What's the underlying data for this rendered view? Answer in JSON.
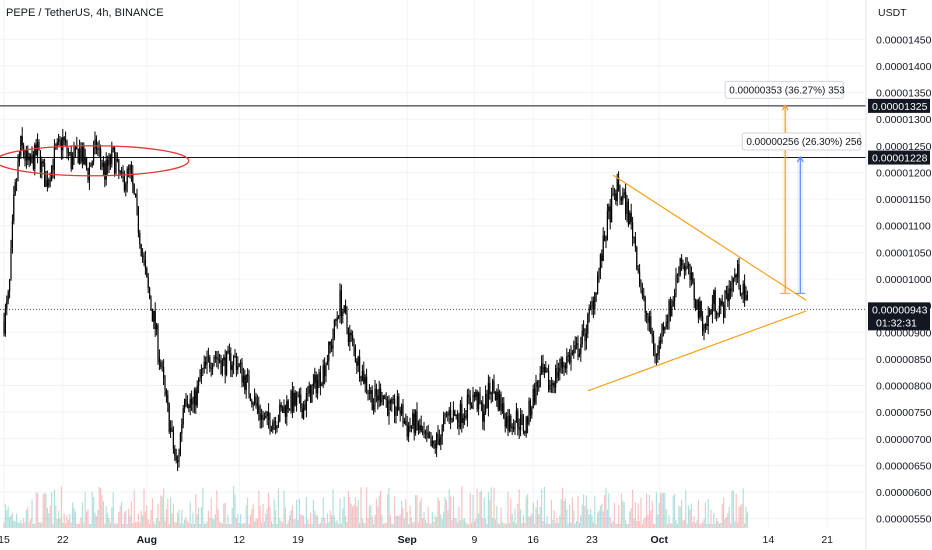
{
  "header": {
    "title": "PEPE / TetherUS, 4h, BINANCE",
    "currency": "USDT"
  },
  "colors": {
    "up": "#26a69a",
    "down": "#ef5350",
    "candle": "#000000",
    "triangle": "#f7a21b",
    "ellipse": "#e53935",
    "measure_blue": "#5b8ff9",
    "measure_orange": "#f7a21b",
    "level_line": "#131722"
  },
  "chart_data": {
    "type": "candlestick",
    "title": "PEPE / TetherUS, 4h, BINANCE",
    "ylabel": "USDT",
    "ylim": [
      5.4e-06,
      1.49e-05
    ],
    "y_ticks": [
      "0.00001450",
      "0.00001400",
      "0.00001350",
      "0.00001300",
      "0.00001250",
      "0.00001200",
      "0.00001150",
      "0.00001100",
      "0.00001050",
      "0.00001000",
      "0.00000950",
      "0.00000900",
      "0.00000850",
      "0.00000800",
      "0.00000750",
      "0.00000700",
      "0.00000650",
      "0.00000600",
      "0.00000550"
    ],
    "x_ticks": [
      {
        "label": "15",
        "day": 0,
        "bold": false
      },
      {
        "label": "22",
        "day": 7,
        "bold": false
      },
      {
        "label": "Aug",
        "day": 17,
        "bold": true
      },
      {
        "label": "12",
        "day": 28,
        "bold": false
      },
      {
        "label": "19",
        "day": 35,
        "bold": false
      },
      {
        "label": "Sep",
        "day": 48,
        "bold": true
      },
      {
        "label": "9",
        "day": 56,
        "bold": false
      },
      {
        "label": "16",
        "day": 63,
        "bold": false
      },
      {
        "label": "23",
        "day": 70,
        "bold": false
      },
      {
        "label": "Oct",
        "day": 78,
        "bold": true
      },
      {
        "label": "14",
        "day": 91,
        "bold": false
      },
      {
        "label": "21",
        "day": 98,
        "bold": false
      }
    ],
    "price_path": [
      [
        0,
        9.2e-06
      ],
      [
        0.6,
        9.7e-06
      ],
      [
        1.2,
        1.15e-05
      ],
      [
        2,
        1.25e-05
      ],
      [
        3,
        1.21e-05
      ],
      [
        4,
        1.24e-05
      ],
      [
        5,
        1.18e-05
      ],
      [
        6,
        1.23e-05
      ],
      [
        7,
        1.26e-05
      ],
      [
        8,
        1.22e-05
      ],
      [
        9,
        1.24e-05
      ],
      [
        10,
        1.2e-05
      ],
      [
        11,
        1.25e-05
      ],
      [
        12,
        1.2e-05
      ],
      [
        13,
        1.23e-05
      ],
      [
        14,
        1.18e-05
      ],
      [
        15,
        1.2e-05
      ],
      [
        16,
        1.1e-05
      ],
      [
        17,
        9.9e-06
      ],
      [
        18,
        9.1e-06
      ],
      [
        19,
        8e-06
      ],
      [
        20,
        7e-06
      ],
      [
        20.6,
        6.4e-06
      ],
      [
        21.5,
        7.9e-06
      ],
      [
        22.5,
        7.6e-06
      ],
      [
        23.5,
        8.2e-06
      ],
      [
        25,
        8.6e-06
      ],
      [
        26,
        8.4e-06
      ],
      [
        27.5,
        8.5e-06
      ],
      [
        29,
        8e-06
      ],
      [
        31,
        7.3e-06
      ],
      [
        32.5,
        7.4e-06
      ],
      [
        34,
        7.7e-06
      ],
      [
        35.5,
        7.6e-06
      ],
      [
        37,
        8e-06
      ],
      [
        38,
        8.3e-06
      ],
      [
        39,
        8.8e-06
      ],
      [
        40,
        9.6e-06
      ],
      [
        41,
        9e-06
      ],
      [
        42,
        8.5e-06
      ],
      [
        43,
        8.1e-06
      ],
      [
        44,
        7.7e-06
      ],
      [
        45,
        7.9e-06
      ],
      [
        46,
        7.5e-06
      ],
      [
        47,
        7.6e-06
      ],
      [
        48,
        7.2e-06
      ],
      [
        49,
        7.3e-06
      ],
      [
        50,
        7e-06
      ],
      [
        51,
        6.8e-06
      ],
      [
        52,
        7.1e-06
      ],
      [
        53,
        7.5e-06
      ],
      [
        54,
        7.4e-06
      ],
      [
        55,
        7.6e-06
      ],
      [
        56,
        7.8e-06
      ],
      [
        57,
        7.5e-06
      ],
      [
        58,
        8e-06
      ],
      [
        59,
        7.7e-06
      ],
      [
        60,
        7.3e-06
      ],
      [
        61,
        7.4e-06
      ],
      [
        62,
        7.2e-06
      ],
      [
        63,
        7.8e-06
      ],
      [
        64,
        8.2e-06
      ],
      [
        65,
        8e-06
      ],
      [
        66,
        8.3e-06
      ],
      [
        67,
        8.5e-06
      ],
      [
        68,
        8.6e-06
      ],
      [
        69,
        8.9e-06
      ],
      [
        70,
        9.5e-06
      ],
      [
        71,
        1.03e-05
      ],
      [
        72,
        1.12e-05
      ],
      [
        73,
        1.17e-05
      ],
      [
        74,
        1.14e-05
      ],
      [
        75,
        1.08e-05
      ],
      [
        76,
        9.6e-06
      ],
      [
        77,
        9e-06
      ],
      [
        77.7,
        8.5e-06
      ],
      [
        78.5,
        9.2e-06
      ],
      [
        79.5,
        9.5e-06
      ],
      [
        80.5,
        1.04e-05
      ],
      [
        81.5,
        1.01e-05
      ],
      [
        82.5,
        9.5e-06
      ],
      [
        83.5,
        9.1e-06
      ],
      [
        84.5,
        9.6e-06
      ],
      [
        85.5,
        9.4e-06
      ],
      [
        86.5,
        9.9e-06
      ],
      [
        87.3,
        1.01e-05
      ],
      [
        88,
        9.7e-06
      ],
      [
        88.6,
        9.43e-06
      ]
    ],
    "current_price": "0.00000943",
    "countdown": "01:32:31",
    "levels": [
      {
        "label": "0.00001325",
        "value": 1.325e-05
      },
      {
        "label": "0.00001228",
        "value": 1.228e-05
      }
    ],
    "annotations": {
      "resistance_ellipse": {
        "day_start": -1,
        "day_end": 22,
        "center": 1.222e-05
      },
      "triangle_upper": [
        [
          72.5,
          1.195e-05
        ],
        [
          95.5,
          9.6e-06
        ]
      ],
      "triangle_lower": [
        [
          69.5,
          7.9e-06
        ],
        [
          95.5,
          9.4e-06
        ]
      ],
      "measures": [
        {
          "label": "0.00000353 (36.27%) 353",
          "from": 9.73e-06,
          "to": 1.326e-05,
          "day": 93,
          "color": "orange"
        },
        {
          "label": "0.00000256 (26.30%) 256",
          "from": 9.73e-06,
          "to": 1.229e-05,
          "day": 94.8,
          "color": "blue"
        }
      ]
    },
    "grid": true
  }
}
